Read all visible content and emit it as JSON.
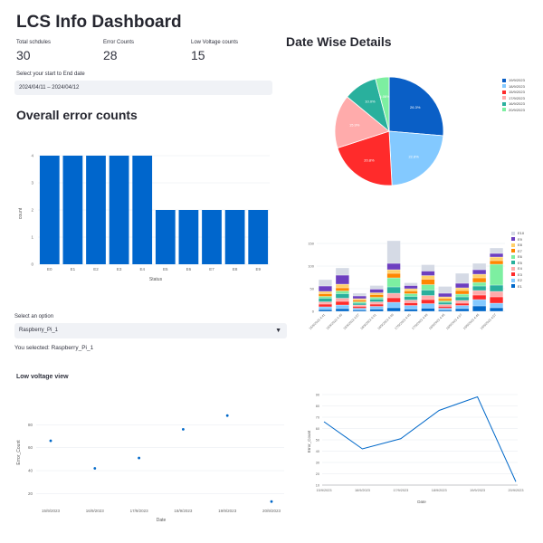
{
  "app": {
    "title": "LCS Info Dashboard"
  },
  "metrics": [
    {
      "label": "Total schdules",
      "value": "30"
    },
    {
      "label": "Error Counts",
      "value": "28"
    },
    {
      "label": "Low Voltage counts",
      "value": "15"
    }
  ],
  "date_picker": {
    "label": "Select your start to End date",
    "value": "2024/04/11 – 2024/04/12"
  },
  "overall": {
    "heading": "Overall error counts",
    "chart_data": {
      "type": "bar",
      "categories": [
        "E0",
        "E1",
        "E2",
        "E3",
        "E4",
        "E5",
        "E6",
        "E7",
        "E8",
        "E9"
      ],
      "values": [
        4,
        4,
        4,
        4,
        4,
        2,
        2,
        2,
        2,
        2
      ],
      "xlabel": "Status",
      "ylabel": "count",
      "ylim": [
        0,
        4
      ],
      "yticks": [
        0,
        1,
        2,
        3,
        4
      ],
      "color": "#0066cc"
    }
  },
  "date_wise": {
    "heading": "Date Wise Details",
    "pie": {
      "type": "pie",
      "labels": [
        "19/9/2023",
        "18/9/2023",
        "15/9/2023",
        "17/9/2023",
        "16/9/2023",
        "20/9/2023"
      ],
      "values": [
        26.3,
        22.8,
        20.8,
        15.9,
        10.0,
        4.06
      ],
      "value_labels": [
        "26.3%",
        "22.8%",
        "20.8%",
        "15.9%",
        "10.0%",
        "4.06%"
      ],
      "colors": [
        "#0a5fc6",
        "#83c9ff",
        "#ff2b2b",
        "#ffabab",
        "#29b09d",
        "#7defa1"
      ],
      "legend_position": "right"
    },
    "stacked": {
      "type": "bar",
      "stacked": true,
      "categories": [
        "15/9/2023 4:41",
        "15/9/2023 4:45",
        "15/9/2023 4:57",
        "16/9/2023 4:41",
        "16/9/2023 4:49",
        "17/9/2023 4:45",
        "17/9/2023 4:49",
        "18/9/2023 4:45",
        "18/9/2023 4:57",
        "19/9/2023 4:45",
        "19/9/2023 4:57"
      ],
      "yticks": [
        0,
        50,
        100,
        150
      ],
      "ylim": [
        0,
        180
      ],
      "legend_position": "right",
      "series": [
        {
          "name": "E1",
          "color": "#0068c9",
          "values": [
            4,
            6,
            3,
            5,
            8,
            5,
            7,
            3,
            6,
            12,
            8
          ]
        },
        {
          "name": "E2",
          "color": "#83c9ff",
          "values": [
            6,
            8,
            4,
            6,
            12,
            8,
            10,
            4,
            7,
            14,
            10
          ]
        },
        {
          "name": "E3",
          "color": "#ff2b2b",
          "values": [
            6,
            8,
            4,
            5,
            10,
            6,
            9,
            4,
            5,
            10,
            14
          ]
        },
        {
          "name": "E4",
          "color": "#ffabab",
          "values": [
            5,
            7,
            3,
            5,
            10,
            6,
            9,
            4,
            6,
            10,
            12
          ]
        },
        {
          "name": "E5",
          "color": "#29b09d",
          "values": [
            8,
            10,
            4,
            6,
            14,
            8,
            12,
            5,
            8,
            10,
            14
          ]
        },
        {
          "name": "E6",
          "color": "#7defa1",
          "values": [
            4,
            6,
            3,
            4,
            20,
            6,
            12,
            3,
            6,
            8,
            46
          ]
        },
        {
          "name": "E7",
          "color": "#ff8700",
          "values": [
            6,
            7,
            4,
            6,
            10,
            6,
            12,
            5,
            8,
            10,
            8
          ]
        },
        {
          "name": "E8",
          "color": "#ffd16a",
          "values": [
            5,
            8,
            3,
            4,
            8,
            5,
            8,
            4,
            6,
            8,
            8
          ]
        },
        {
          "name": "E9",
          "color": "#6d3fc0",
          "values": [
            12,
            20,
            6,
            8,
            14,
            7,
            10,
            8,
            10,
            10,
            8
          ]
        },
        {
          "name": "E10",
          "color": "#d5dae5",
          "values": [
            14,
            16,
            6,
            8,
            50,
            6,
            14,
            15,
            22,
            14,
            12
          ]
        }
      ]
    }
  },
  "select_box": {
    "label": "Select an option",
    "value": "Raspberry_Pi_1",
    "selected_text": "You selected: Raspberry_Pi_1"
  },
  "low_voltage": {
    "heading": "Low voltage view",
    "scatter": {
      "type": "scatter",
      "x": [
        "15/9/2023",
        "16/9/2023",
        "17/9/2023",
        "18/9/2023",
        "19/9/2023",
        "20/9/2023"
      ],
      "y": [
        66,
        42,
        51,
        76,
        88,
        13
      ],
      "xlabel": "Date",
      "ylabel": "Error_Count",
      "ylim": [
        10,
        100
      ],
      "yticks": [
        20,
        40,
        60,
        80
      ],
      "color": "#0068c9"
    },
    "line": {
      "type": "line",
      "x": [
        "15/9/2023",
        "16/9/2023",
        "17/9/2023",
        "18/9/2023",
        "19/9/2023",
        "20/9/2023"
      ],
      "y": [
        66,
        42,
        51,
        76,
        88,
        13
      ],
      "xlabel": "Date",
      "ylabel": "Error_Count",
      "ylim": [
        10,
        90
      ],
      "yticks": [
        10,
        20,
        30,
        40,
        50,
        60,
        70,
        80,
        90
      ],
      "color": "#0068c9"
    }
  }
}
